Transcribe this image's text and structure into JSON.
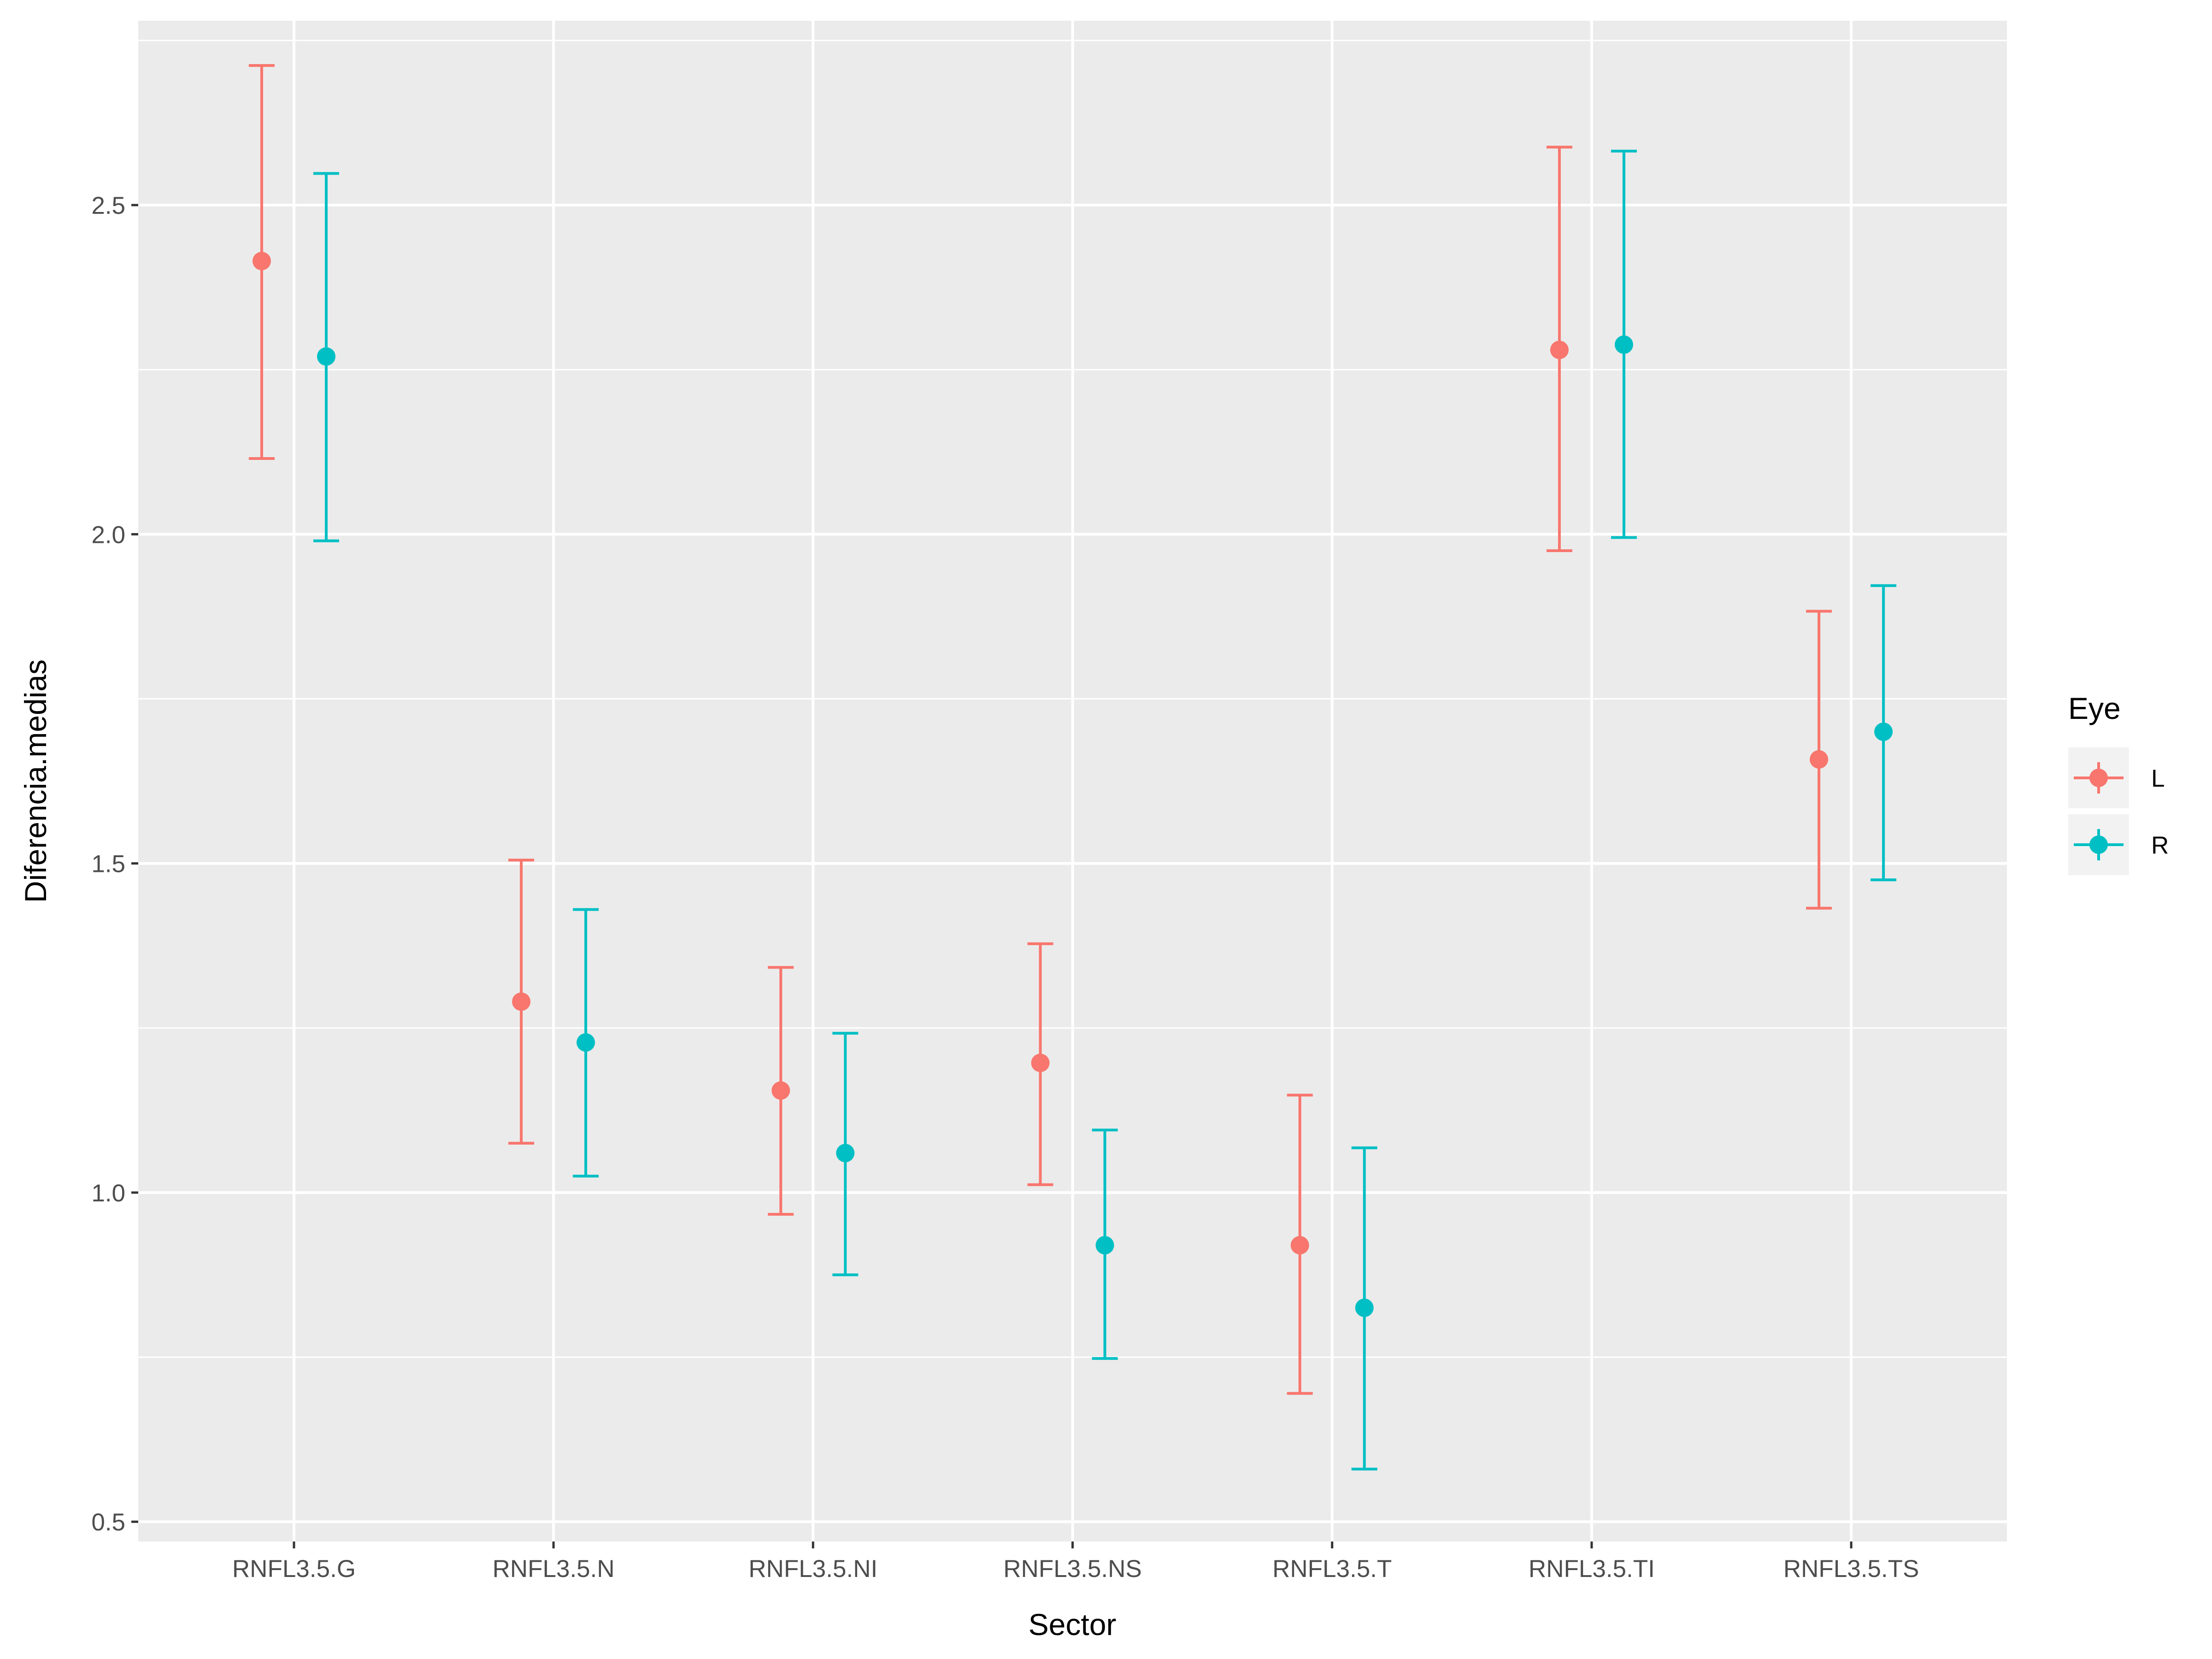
{
  "chart_data": {
    "type": "scatter",
    "subtype": "point-with-errorbars",
    "xlabel": "Sector",
    "ylabel": "Diferencia.medias",
    "categories": [
      "RNFL3.5.G",
      "RNFL3.5.N",
      "RNFL3.5.NI",
      "RNFL3.5.NS",
      "RNFL3.5.T",
      "RNFL3.5.TI",
      "RNFL3.5.TS"
    ],
    "ylim": [
      0.47,
      2.78
    ],
    "yticks": [
      0.5,
      1.0,
      1.5,
      2.0,
      2.5
    ],
    "ytick_labels": [
      "0.5",
      "1.0",
      "1.5",
      "2.0",
      "2.5"
    ],
    "grid": true,
    "background": "#ebebeb",
    "legend": {
      "title": "Eye",
      "position": "right"
    },
    "series": [
      {
        "name": "L",
        "color": "#F8766D",
        "values": [
          2.415,
          1.29,
          1.155,
          1.197,
          0.92,
          2.28,
          1.658
        ],
        "lower": [
          2.115,
          1.075,
          0.967,
          1.012,
          0.695,
          1.975,
          1.432
        ],
        "upper": [
          2.712,
          1.505,
          1.342,
          1.378,
          1.148,
          2.588,
          1.883
        ]
      },
      {
        "name": "R",
        "color": "#00BFC4",
        "values": [
          2.27,
          1.228,
          1.06,
          0.92,
          0.825,
          2.288,
          1.7
        ],
        "lower": [
          1.99,
          1.025,
          0.875,
          0.748,
          0.58,
          1.995,
          1.475
        ],
        "upper": [
          2.548,
          1.43,
          1.242,
          1.095,
          1.068,
          2.582,
          1.922
        ]
      }
    ]
  }
}
